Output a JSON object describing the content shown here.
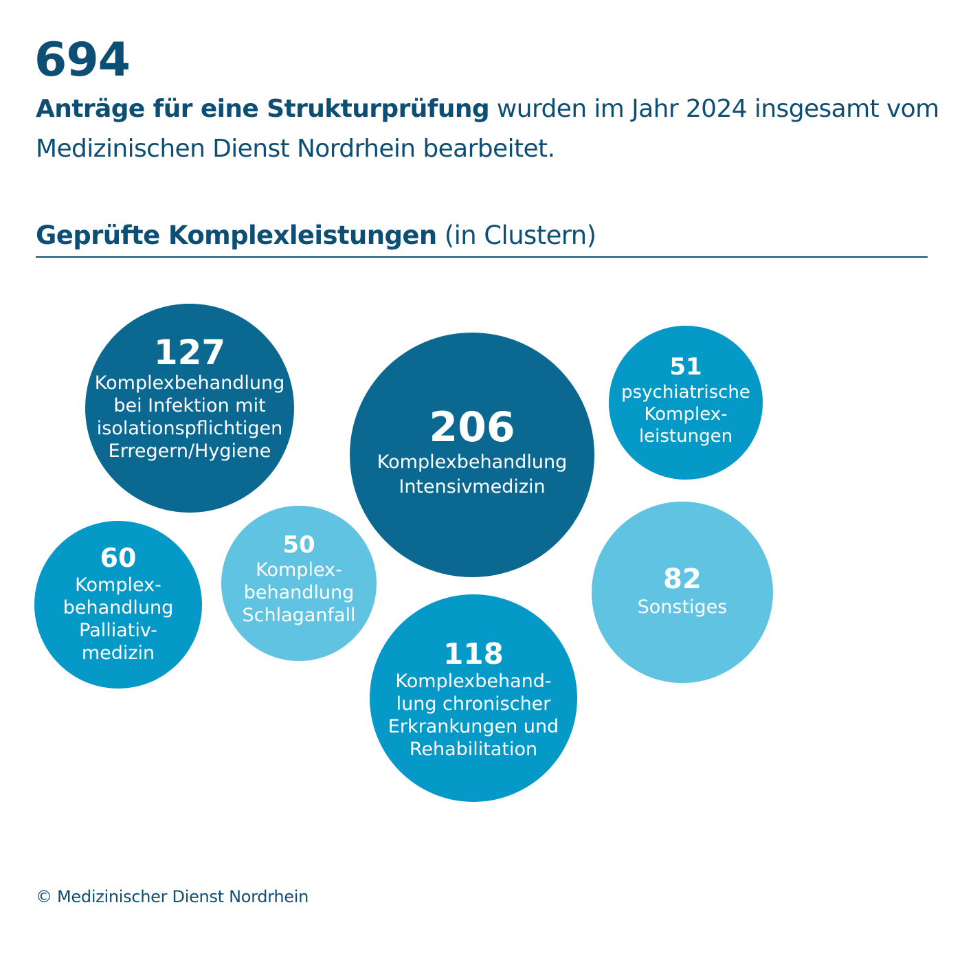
{
  "header": {
    "total": "694",
    "intro_bold": "Anträge für eine Strukturprüfung",
    "intro_rest": " wurden im Jahr 2024 insgesamt vom Medizinischen Dienst Nordrhein bearbeitet."
  },
  "section": {
    "title_bold": "Geprüfte Komplexleistungen",
    "title_rest": " (in Clustern)"
  },
  "footer": {
    "copyright": "© Medizinischer Dienst Nordrhein"
  },
  "colors": {
    "dark": "#0b6890",
    "medium": "#0499c6",
    "light": "#60c3e1",
    "text": "#0d4e74"
  },
  "chart_data": {
    "type": "bubble",
    "title": "Geprüfte Komplexleistungen (in Clustern)",
    "series": [
      {
        "id": "infektion",
        "value": 127,
        "label_lines": [
          "Komplexbehandlung",
          "bei Infektion mit",
          "isolationspflichtigen",
          "Erregern/Hygiene"
        ],
        "color": "dark"
      },
      {
        "id": "intensivmedizin",
        "value": 206,
        "label_lines": [
          "Komplexbehandlung",
          "Intensivmedizin"
        ],
        "color": "dark"
      },
      {
        "id": "psychiatrie",
        "value": 51,
        "label_lines": [
          "psychiatrische",
          "Komplex-",
          "leistungen"
        ],
        "color": "medium"
      },
      {
        "id": "palliativ",
        "value": 60,
        "label_lines": [
          "Komplex-",
          "behandlung",
          "Palliativ-",
          "medizin"
        ],
        "color": "medium"
      },
      {
        "id": "schlaganfall",
        "value": 50,
        "label_lines": [
          "Komplex-",
          "behandlung",
          "Schlaganfall"
        ],
        "color": "light"
      },
      {
        "id": "chronisch",
        "value": 118,
        "label_lines": [
          "Komplexbehand-",
          "lung chronischer",
          "Erkrankungen und",
          "Rehabilitation"
        ],
        "color": "medium"
      },
      {
        "id": "sonstiges",
        "value": 82,
        "label_lines": [
          "Sonstiges"
        ],
        "color": "light"
      }
    ]
  }
}
